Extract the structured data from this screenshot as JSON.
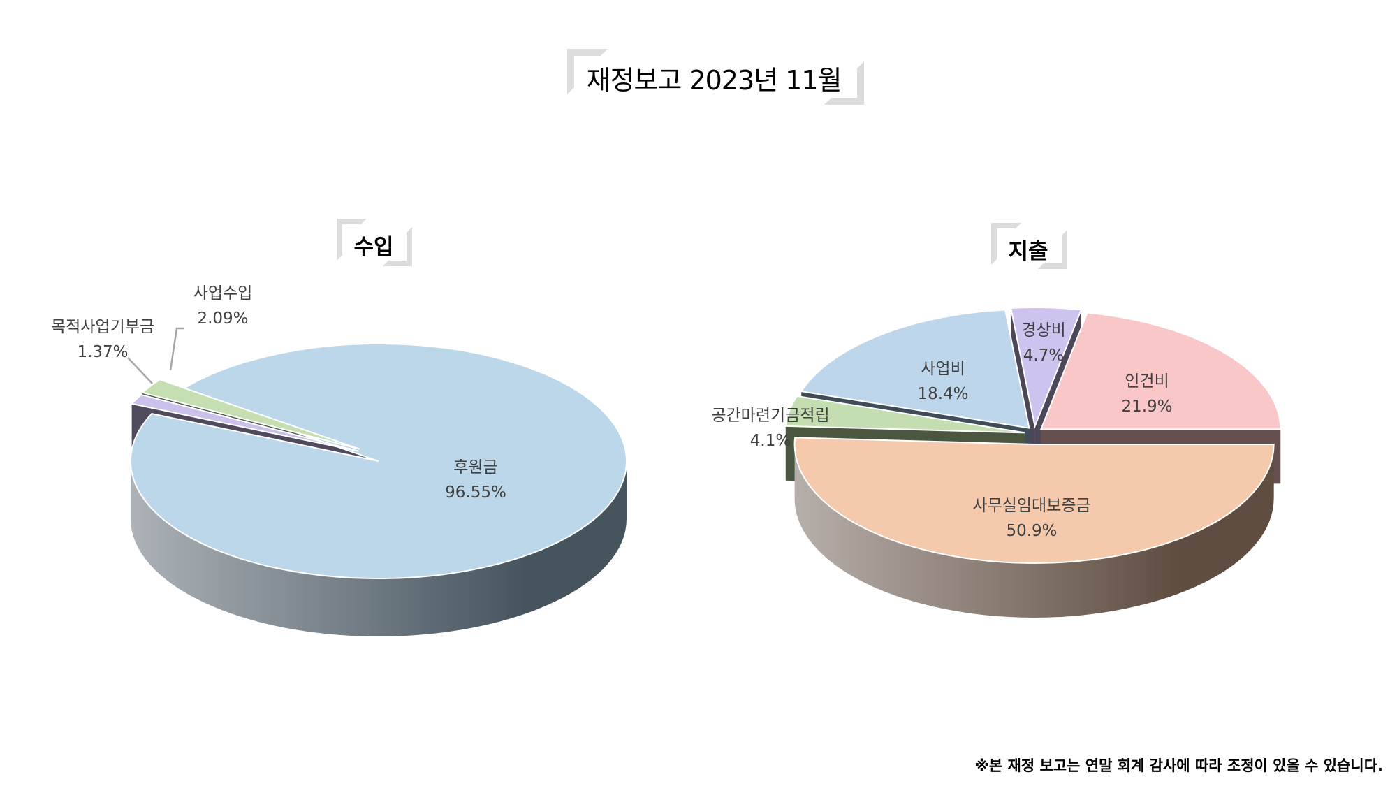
{
  "title": "재정보고 2023년 11월",
  "footnote": "※본 재정 보고는 연말 회계 감사에 따라 조정이 있을 수 있습니다.",
  "chart_data": [
    {
      "type": "pie",
      "style": "3d exploded",
      "title": "수입",
      "categories": [
        "후원금",
        "목적사업기부금",
        "사업수입"
      ],
      "values": [
        96.55,
        1.37,
        2.09
      ],
      "labels": [
        "96.55%",
        "1.37%",
        "2.09%"
      ],
      "colors": [
        "#BCD6EA",
        "#CCC0EC",
        "#C5DFB2"
      ],
      "side_colors": [
        "#46545E",
        "#4F4A5E",
        "#45553F"
      ]
    },
    {
      "type": "pie",
      "style": "3d exploded",
      "title": "지출",
      "categories": [
        "사무실임대보증금",
        "공간마련기금적립",
        "사업비",
        "경상비",
        "인건비"
      ],
      "values": [
        50.9,
        4.1,
        18.4,
        4.7,
        21.9
      ],
      "labels": [
        "50.9%",
        "4.1%",
        "18.4%",
        "4.7%",
        "21.9%"
      ],
      "colors": [
        "#F5C9AC",
        "#C5DEB1",
        "#BDD6EC",
        "#CEC3EE",
        "#F9C7C7"
      ],
      "side_colors": [
        "#5F4D41",
        "#4A5640",
        "#3E4D57",
        "#4C4759",
        "#654F4F"
      ]
    }
  ]
}
